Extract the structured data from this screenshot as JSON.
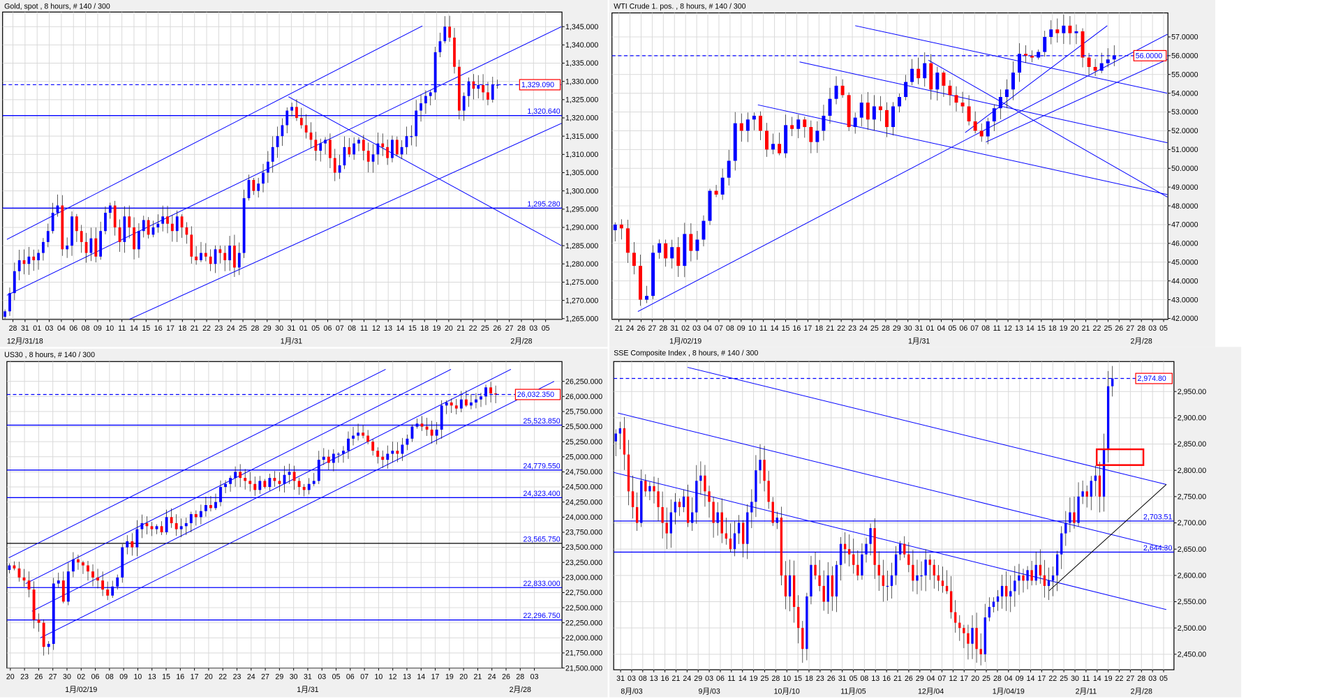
{
  "chart_data": [
    {
      "id": "gold",
      "type": "candlestick",
      "title": "Gold, spot , 8 hours, # 140 / 300",
      "ylim": [
        1264.8,
        1349
      ],
      "ytick_values": [
        1265,
        1270,
        1275,
        1280,
        1285,
        1290,
        1295,
        1300,
        1305,
        1310,
        1315,
        1320,
        1325,
        1330,
        1335,
        1340,
        1345
      ],
      "ytick_labels": [
        "1,265.000",
        "1,270.000",
        "1,275.000",
        "1,280.000",
        "1,285.000",
        "1,290.000",
        "1,295.000",
        "1,300.000",
        "1,305.000",
        "1,310.000",
        "1,315.000",
        "1,320.000",
        "1,325.000",
        "1,330.000",
        "1,335.000",
        "1,340.000",
        "1,345.000"
      ],
      "xtick_labels": [
        "28",
        "31",
        "01",
        "03",
        "04",
        "06",
        "08",
        "09",
        "10",
        "11",
        "14",
        "15",
        "16",
        "17",
        "18",
        "21",
        "22",
        "23",
        "24",
        "25",
        "28",
        "29",
        "30",
        "31",
        "01",
        "05",
        "06",
        "07",
        "08",
        "11",
        "12",
        "13",
        "14",
        "15",
        "18",
        "19",
        "20",
        "21",
        "22",
        "25",
        "26",
        "27",
        "28",
        "03",
        "05"
      ],
      "month_labels": [
        {
          "label": "12月/31/18",
          "at": 1
        },
        {
          "label": "1月/31",
          "at": 23
        },
        {
          "label": "2月/28",
          "at": 42
        }
      ],
      "current_price": {
        "value": 1329.09,
        "label": "1,329.090"
      },
      "hlines": [
        {
          "value": 1320.64,
          "label": "1,320.640",
          "color": "#0000ff"
        },
        {
          "value": 1295.28,
          "label": "1,295.280",
          "color": "#0000ff"
        }
      ],
      "trendlines": [
        {
          "i1": 0.4,
          "p1": 1286.7,
          "i2": 87.3,
          "p2": 1345.2,
          "color": "#0000ff"
        },
        {
          "i1": 0.4,
          "p1": 1271.4,
          "i2": 116.4,
          "p2": 1345.0,
          "color": "#0000ff"
        },
        {
          "i1": 26.0,
          "p1": 1264.8,
          "i2": 116.4,
          "p2": 1318.5,
          "color": "#0000ff"
        },
        {
          "i1": 59.3,
          "p1": 1325.8,
          "i2": 116.4,
          "p2": 1285.0,
          "color": "#0000ff"
        }
      ],
      "closes": [
        1267,
        1272,
        1278,
        1281,
        1280,
        1282,
        1281,
        1283,
        1286,
        1289,
        1294,
        1296,
        1284,
        1285,
        1293,
        1289,
        1286,
        1283,
        1287,
        1282,
        1289,
        1294,
        1296,
        1290,
        1286,
        1293,
        1290,
        1284,
        1289,
        1292,
        1288,
        1290,
        1291,
        1293,
        1291,
        1289,
        1293,
        1290,
        1288,
        1282,
        1281,
        1283,
        1282,
        1280,
        1284,
        1283,
        1281,
        1285,
        1279,
        1283,
        1298,
        1303,
        1300,
        1302,
        1305,
        1308,
        1312,
        1315,
        1318,
        1322,
        1323,
        1320,
        1318,
        1316,
        1314,
        1311,
        1313,
        1314,
        1309,
        1305,
        1307,
        1312,
        1310,
        1313,
        1314,
        1311,
        1308,
        1310,
        1313,
        1312,
        1309,
        1314,
        1310,
        1312,
        1315,
        1315,
        1322,
        1324,
        1326,
        1327,
        1338,
        1341,
        1345,
        1342,
        1334,
        1322,
        1326,
        1330,
        1328,
        1329,
        1327,
        1325,
        1329,
        1329.09
      ]
    },
    {
      "id": "wti",
      "type": "candlestick",
      "title": "WTI Crude 1. pos. , 8 hours, # 140 / 300",
      "ylim": [
        41.95,
        58.28
      ],
      "ytick_values": [
        42,
        43,
        44,
        45,
        46,
        47,
        48,
        49,
        50,
        51,
        52,
        53,
        54,
        55,
        56,
        57
      ],
      "ytick_labels": [
        "42.0000",
        "43.0000",
        "44.0000",
        "45.0000",
        "46.0000",
        "47.0000",
        "48.0000",
        "49.0000",
        "50.0000",
        "51.0000",
        "52.0000",
        "53.0000",
        "54.0000",
        "55.0000",
        "56.0000",
        "57.0000"
      ],
      "xtick_labels": [
        "21",
        "24",
        "26",
        "27",
        "28",
        "31",
        "02",
        "03",
        "04",
        "07",
        "08",
        "09",
        "10",
        "11",
        "14",
        "15",
        "16",
        "17",
        "18",
        "21",
        "22",
        "23",
        "24",
        "25",
        "28",
        "29",
        "30",
        "31",
        "01",
        "04",
        "05",
        "06",
        "07",
        "08",
        "11",
        "12",
        "13",
        "14",
        "15",
        "18",
        "19",
        "20",
        "21",
        "22",
        "25",
        "26",
        "27",
        "28",
        "03",
        "05"
      ],
      "month_labels": [
        {
          "label": "1月/02/19",
          "at": 6
        },
        {
          "label": "1月/31",
          "at": 27
        },
        {
          "label": "2月/28",
          "at": 47
        }
      ],
      "current_price": {
        "value": 56.0,
        "label": "56.0000"
      },
      "hlines": [],
      "trendlines": [
        {
          "i1": 3.6,
          "p1": 42.37,
          "i2": 87.4,
          "p2": 57.14,
          "color": "#0000ff"
        },
        {
          "i1": 58.7,
          "p1": 51.4,
          "i2": 87.4,
          "p2": 55.8,
          "color": "#0000ff"
        },
        {
          "i1": 55.4,
          "p1": 51.9,
          "i2": 77.9,
          "p2": 57.6,
          "color": "#0000ff"
        },
        {
          "i1": 38.0,
          "p1": 57.6,
          "i2": 87.4,
          "p2": 54.0,
          "color": "#0000ff"
        },
        {
          "i1": 29.2,
          "p1": 55.67,
          "i2": 87.4,
          "p2": 51.36,
          "color": "#0000ff"
        },
        {
          "i1": 22.6,
          "p1": 53.38,
          "i2": 87.4,
          "p2": 48.6,
          "color": "#0000ff"
        },
        {
          "i1": 49.6,
          "p1": 55.76,
          "i2": 87.4,
          "p2": 48.47,
          "color": "#0000ff"
        }
      ],
      "closes": [
        47.0,
        46.8,
        45.5,
        44.8,
        43.0,
        43.2,
        45.5,
        46.0,
        45.2,
        45.8,
        44.8,
        46.5,
        45.6,
        46.2,
        47.2,
        48.8,
        48.6,
        49.5,
        50.4,
        52.4,
        52.0,
        52.6,
        52.8,
        52.0,
        51.0,
        51.3,
        50.8,
        52.3,
        52.1,
        52.6,
        52.2,
        51.4,
        52.0,
        52.8,
        53.7,
        54.4,
        53.9,
        52.2,
        52.7,
        53.5,
        52.6,
        53.3,
        53.1,
        52.2,
        53.3,
        53.8,
        54.6,
        55.3,
        54.8,
        55.6,
        54.2,
        55.1,
        54.4,
        53.9,
        53.5,
        53.3,
        52.5,
        52.0,
        51.7,
        52.5,
        53.2,
        53.8,
        54.2,
        55.1,
        56.1,
        56.0,
        55.9,
        56.2,
        57.0,
        57.4,
        57.2,
        57.6,
        57.2,
        57.3,
        55.9,
        55.4,
        55.2,
        55.6,
        55.8,
        56.0
      ]
    },
    {
      "id": "us30",
      "type": "candlestick",
      "title": "US30 , 8 hours, # 140 / 300",
      "ylim": [
        21500,
        26578
      ],
      "ytick_values": [
        21500,
        21750,
        22000,
        22250,
        22500,
        22750,
        23000,
        23250,
        23500,
        23750,
        24000,
        24250,
        24500,
        24750,
        25000,
        25250,
        25500,
        25750,
        26000,
        26250
      ],
      "ytick_labels": [
        "21,500.000",
        "21,750.000",
        "22,000.000",
        "22,250.000",
        "22,500.000",
        "22,750.000",
        "23,000.000",
        "23,250.000",
        "23,500.000",
        "23,750.000",
        "24,000.000",
        "24,250.000",
        "24,500.000",
        "24,750.000",
        "25,000.000",
        "25,250.000",
        "25,500.000",
        "25,750.000",
        "26,000.000",
        "26,250.000"
      ],
      "xtick_labels": [
        "20",
        "23",
        "26",
        "27",
        "30",
        "02",
        "06",
        "08",
        "09",
        "10",
        "13",
        "15",
        "16",
        "17",
        "20",
        "22",
        "23",
        "24",
        "27",
        "29",
        "30",
        "31",
        "03",
        "05",
        "06",
        "07",
        "10",
        "12",
        "13",
        "14",
        "17",
        "19",
        "20",
        "21",
        "24",
        "26",
        "28",
        "03"
      ],
      "month_labels": [
        {
          "label": "1月/02/19",
          "at": 5
        },
        {
          "label": "1月/31",
          "at": 21
        },
        {
          "label": "2月/28",
          "at": 36
        }
      ],
      "current_price": {
        "value": 26032.35,
        "label": "26,032.350"
      },
      "hlines": [
        {
          "value": 25523.85,
          "label": "25,523.850",
          "color": "#0000ff"
        },
        {
          "value": 24779.55,
          "label": "24,779.550",
          "color": "#0000ff"
        },
        {
          "value": 24323.4,
          "label": "24,323.400",
          "color": "#0000ff"
        },
        {
          "value": 23565.75,
          "label": "23,565.750",
          "color": "#000000"
        },
        {
          "value": 22833.0,
          "label": "22,833.000",
          "color": "#0000ff"
        },
        {
          "value": 22296.75,
          "label": "22,296.750",
          "color": "#0000ff"
        }
      ],
      "trendlines": [
        {
          "i1": -0.15,
          "p1": 23325,
          "i2": 76.6,
          "p2": 26449,
          "color": "#0000ff"
        },
        {
          "i1": 3.3,
          "p1": 22898,
          "i2": 89.9,
          "p2": 26449,
          "color": "#0000ff"
        },
        {
          "i1": 4.6,
          "p1": 22441,
          "i2": 102.1,
          "p2": 26449,
          "color": "#0000ff"
        },
        {
          "i1": 6.3,
          "p1": 21999,
          "i2": 110.9,
          "p2": 26249,
          "color": "#0000ff"
        }
      ],
      "closes": [
        23200,
        23150,
        23000,
        22950,
        22800,
        22300,
        22250,
        21850,
        21900,
        22900,
        22950,
        22600,
        23100,
        23300,
        23250,
        23200,
        23100,
        23000,
        22950,
        22800,
        22700,
        22850,
        23000,
        23500,
        23600,
        23500,
        23800,
        23900,
        23850,
        23800,
        23850,
        23750,
        24000,
        23900,
        23800,
        23850,
        23900,
        24050,
        24000,
        24100,
        24200,
        24150,
        24250,
        24500,
        24550,
        24650,
        24750,
        24650,
        24600,
        24550,
        24450,
        24600,
        24500,
        24650,
        24600,
        24550,
        24700,
        24750,
        24600,
        24500,
        24450,
        24550,
        24600,
        24950,
        25000,
        24900,
        25050,
        25050,
        25100,
        25300,
        25350,
        25400,
        25350,
        25250,
        25100,
        25000,
        24950,
        25050,
        25100,
        25050,
        25200,
        25300,
        25500,
        25550,
        25500,
        25450,
        25350,
        25450,
        25850,
        25900,
        25850,
        25800,
        25950,
        25850,
        25900,
        25950,
        26000,
        26150,
        26050,
        26032.35
      ]
    },
    {
      "id": "sse",
      "type": "candlestick",
      "title": "SSE Composite Index , 8 hours, # 140 / 300",
      "ylim": [
        2420.5,
        3007
      ],
      "ytick_values": [
        2450,
        2500,
        2550,
        2600,
        2650,
        2700,
        2750,
        2800,
        2850,
        2900,
        2950
      ],
      "ytick_labels": [
        "2,450.00",
        "2,500.00",
        "2,550.00",
        "2,600.00",
        "2,650.00",
        "2,700.00",
        "2,750.00",
        "2,800.00",
        "2,850.00",
        "2,900.00",
        "2,950.00"
      ],
      "xtick_labels": [
        "31",
        "03",
        "08",
        "13",
        "16",
        "21",
        "24",
        "29",
        "03",
        "06",
        "11",
        "14",
        "19",
        "25",
        "28",
        "10",
        "15",
        "18",
        "23",
        "26",
        "31",
        "05",
        "08",
        "13",
        "16",
        "21",
        "26",
        "29",
        "04",
        "07",
        "12",
        "17",
        "20",
        "25",
        "28",
        "04",
        "09",
        "14",
        "17",
        "22",
        "25",
        "30",
        "11",
        "14",
        "19",
        "22",
        "27",
        "28",
        "03",
        "05"
      ],
      "month_labels": [
        {
          "label": "8月/03",
          "at": 1
        },
        {
          "label": "9月/03",
          "at": 8
        },
        {
          "label": "10月/10",
          "at": 15
        },
        {
          "label": "11月/05",
          "at": 21
        },
        {
          "label": "12月/04",
          "at": 28
        },
        {
          "label": "1月/04/19",
          "at": 35
        },
        {
          "label": "2月/11",
          "at": 42
        },
        {
          "label": "2月/28",
          "at": 47
        }
      ],
      "current_price": {
        "value": 2974.8,
        "label": "2,974.80"
      },
      "hlines": [
        {
          "value": 2703.51,
          "label": "2,703.51",
          "color": "#0000ff"
        },
        {
          "value": 2644.3,
          "label": "2,644.30",
          "color": "#0000ff"
        }
      ],
      "trendlines": [
        {
          "i1": 16.9,
          "p1": 2996,
          "i2": 129.7,
          "p2": 2773,
          "color": "#0000ff"
        },
        {
          "i1": 0.5,
          "p1": 2909,
          "i2": 129.7,
          "p2": 2652,
          "color": "#0000ff"
        },
        {
          "i1": -0.5,
          "p1": 2796,
          "i2": 129.7,
          "p2": 2535,
          "color": "#0000ff"
        },
        {
          "i1": 102.1,
          "p1": 2571,
          "i2": 129.7,
          "p2": 2773,
          "color": "#000000"
        }
      ],
      "annotation_box": {
        "i1": 113.3,
        "i2": 124.3,
        "p1": 2840,
        "p2": 2810,
        "color": "#ff0000"
      },
      "closes": [
        2870,
        2880,
        2830,
        2760,
        2730,
        2700,
        2780,
        2760,
        2770,
        2760,
        2730,
        2700,
        2680,
        2720,
        2740,
        2730,
        2750,
        2700,
        2720,
        2780,
        2790,
        2760,
        2740,
        2700,
        2720,
        2680,
        2670,
        2650,
        2680,
        2700,
        2660,
        2720,
        2740,
        2800,
        2820,
        2780,
        2740,
        2700,
        2710,
        2600,
        2560,
        2600,
        2540,
        2500,
        2460,
        2560,
        2620,
        2600,
        2580,
        2550,
        2600,
        2560,
        2620,
        2660,
        2650,
        2640,
        2620,
        2600,
        2640,
        2660,
        2690,
        2620,
        2600,
        2580,
        2580,
        2600,
        2640,
        2660,
        2640,
        2620,
        2590,
        2600,
        2600,
        2630,
        2620,
        2600,
        2590,
        2580,
        2570,
        2530,
        2510,
        2500,
        2490,
        2470,
        2500,
        2460,
        2450,
        2520,
        2540,
        2550,
        2560,
        2580,
        2560,
        2570,
        2590,
        2600,
        2590,
        2610,
        2590,
        2620,
        2600,
        2580,
        2590,
        2600,
        2640,
        2680,
        2700,
        2720,
        2700,
        2750,
        2760,
        2750,
        2780,
        2790,
        2750,
        2840,
        2960,
        2974.8
      ]
    }
  ],
  "colors": {
    "up": "#0000ff",
    "down": "#ff0000",
    "grid": "#d9d9d9",
    "panel": "#f0f0f0",
    "current_box": "#ff0000"
  }
}
